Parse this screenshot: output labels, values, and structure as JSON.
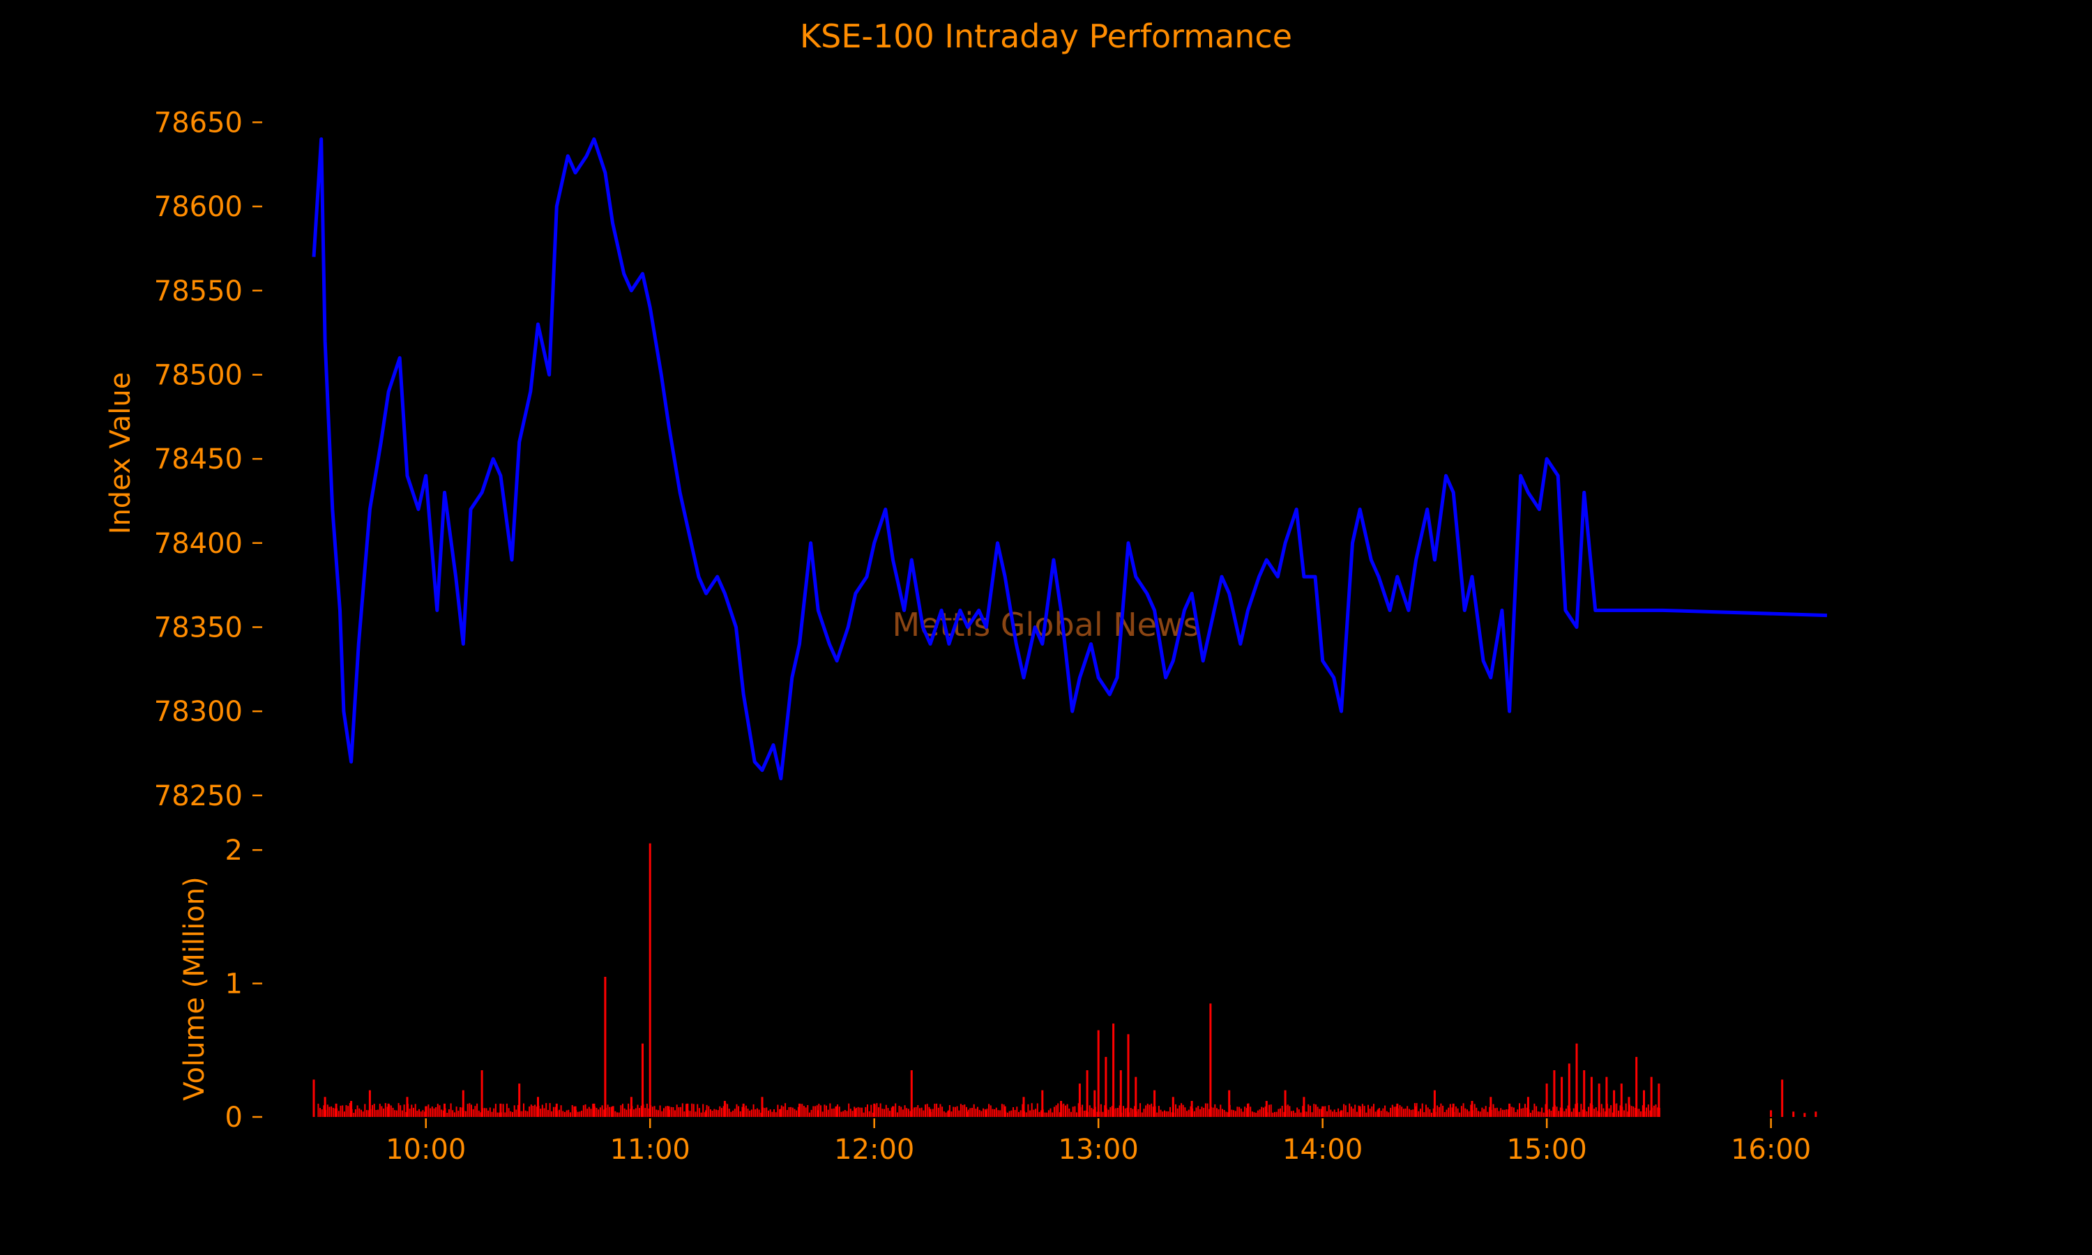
{
  "colors": {
    "background": "#000000",
    "text": "#ff8c00",
    "index_line": "#0000ff",
    "volume_bars": "#ff0000",
    "watermark": "#8b4513"
  },
  "watermark": "Mettis Global News",
  "chart_data": [
    {
      "type": "line",
      "title": "KSE-100 Intraday Performance",
      "ylabel": "Index Value",
      "ylim": [
        78240,
        78680
      ],
      "yticks": [
        78250,
        78300,
        78350,
        78400,
        78450,
        78500,
        78550,
        78600,
        78650
      ],
      "xlim": [
        "09:30",
        "16:15"
      ],
      "grid": false,
      "series": [
        {
          "x": [
            "09:30",
            "09:32",
            "09:33",
            "09:35",
            "09:37",
            "09:38",
            "09:40",
            "09:42",
            "09:45",
            "09:48",
            "09:50",
            "09:53",
            "09:55",
            "09:58",
            "10:00",
            "10:03",
            "10:05",
            "10:08",
            "10:10",
            "10:12",
            "10:15",
            "10:18",
            "10:20",
            "10:23",
            "10:25",
            "10:28",
            "10:30",
            "10:33",
            "10:35",
            "10:38",
            "10:40",
            "10:43",
            "10:45",
            "10:48",
            "10:50",
            "10:53",
            "10:55",
            "10:58",
            "11:00",
            "11:03",
            "11:05",
            "11:08",
            "11:10",
            "11:13",
            "11:15",
            "11:18",
            "11:20",
            "11:23",
            "11:25",
            "11:28",
            "11:30",
            "11:33",
            "11:35",
            "11:38",
            "11:40",
            "11:43",
            "11:45",
            "11:48",
            "11:50",
            "11:53",
            "11:55",
            "11:58",
            "12:00",
            "12:03",
            "12:05",
            "12:08",
            "12:10",
            "12:13",
            "12:15",
            "12:18",
            "12:20",
            "12:23",
            "12:25",
            "12:28",
            "12:30",
            "12:33",
            "12:35",
            "12:38",
            "12:40",
            "12:43",
            "12:45",
            "12:48",
            "12:50",
            "12:53",
            "12:55",
            "12:58",
            "13:00",
            "13:03",
            "13:05",
            "13:08",
            "13:10",
            "13:13",
            "13:15",
            "13:18",
            "13:20",
            "13:23",
            "13:25",
            "13:28",
            "13:30",
            "13:33",
            "13:35",
            "13:38",
            "13:40",
            "13:43",
            "13:45",
            "13:48",
            "13:50",
            "13:53",
            "13:55",
            "13:58",
            "14:00",
            "14:03",
            "14:05",
            "14:08",
            "14:10",
            "14:13",
            "14:15",
            "14:18",
            "14:20",
            "14:23",
            "14:25",
            "14:28",
            "14:30",
            "14:33",
            "14:35",
            "14:38",
            "14:40",
            "14:43",
            "14:45",
            "14:48",
            "14:50",
            "14:53",
            "14:55",
            "14:58",
            "15:00",
            "15:03",
            "15:05",
            "15:08",
            "15:10",
            "15:13",
            "15:15",
            "15:18",
            "15:20",
            "15:23",
            "15:25",
            "15:27",
            "15:28",
            "15:30",
            "15:31",
            "16:15"
          ],
          "y": [
            78570,
            78640,
            78520,
            78420,
            78360,
            78300,
            78270,
            78340,
            78420,
            78460,
            78490,
            78510,
            78440,
            78420,
            78440,
            78360,
            78430,
            78380,
            78340,
            78420,
            78430,
            78450,
            78440,
            78390,
            78460,
            78490,
            78530,
            78500,
            78600,
            78630,
            78620,
            78630,
            78640,
            78620,
            78590,
            78560,
            78550,
            78560,
            78540,
            78500,
            78470,
            78430,
            78410,
            78380,
            78370,
            78380,
            78370,
            78350,
            78310,
            78270,
            78265,
            78280,
            78260,
            78320,
            78340,
            78400,
            78360,
            78340,
            78330,
            78350,
            78370,
            78380,
            78400,
            78420,
            78390,
            78360,
            78390,
            78350,
            78340,
            78360,
            78340,
            78360,
            78350,
            78360,
            78350,
            78400,
            78380,
            78340,
            78320,
            78350,
            78340,
            78390,
            78360,
            78300,
            78320,
            78340,
            78320,
            78310,
            78320,
            78400,
            78380,
            78370,
            78360,
            78320,
            78330,
            78360,
            78370,
            78330,
            78350,
            78380,
            78370,
            78340,
            78360,
            78380,
            78390,
            78380,
            78400,
            78420,
            78380,
            78380,
            78330,
            78320,
            78300,
            78400,
            78420,
            78390,
            78380,
            78360,
            78380,
            78360,
            78390,
            78420,
            78390,
            78440,
            78430,
            78360,
            78380,
            78330,
            78320,
            78360,
            78300,
            78440,
            78430,
            78420,
            78450,
            78440,
            78360,
            78350,
            78430,
            78360,
            78360,
            78360,
            78360,
            78360,
            78360,
            78360,
            78360,
            78360,
            78360,
            78357
          ]
        }
      ]
    },
    {
      "type": "bar",
      "ylabel": "Volume (Million)",
      "ylim": [
        0,
        2.1
      ],
      "yticks": [
        0,
        1,
        2
      ],
      "xlim": [
        "09:30",
        "16:15"
      ],
      "xticks": [
        "10:00",
        "11:00",
        "12:00",
        "13:00",
        "14:00",
        "15:00",
        "16:00"
      ],
      "grid": false,
      "series": [
        {
          "x": [
            "09:30",
            "09:33",
            "09:36",
            "09:40",
            "09:45",
            "09:50",
            "09:55",
            "10:00",
            "10:05",
            "10:10",
            "10:15",
            "10:20",
            "10:25",
            "10:30",
            "10:35",
            "10:40",
            "10:45",
            "10:48",
            "10:50",
            "10:55",
            "10:58",
            "11:00",
            "11:05",
            "11:10",
            "11:15",
            "11:20",
            "11:25",
            "11:30",
            "11:35",
            "11:40",
            "11:45",
            "11:50",
            "11:55",
            "12:00",
            "12:05",
            "12:10",
            "12:15",
            "12:20",
            "12:25",
            "12:30",
            "12:35",
            "12:40",
            "12:45",
            "12:50",
            "12:55",
            "12:57",
            "12:59",
            "13:00",
            "13:02",
            "13:04",
            "13:06",
            "13:08",
            "13:10",
            "13:15",
            "13:20",
            "13:25",
            "13:30",
            "13:35",
            "13:40",
            "13:45",
            "13:50",
            "13:55",
            "14:00",
            "14:05",
            "14:10",
            "14:15",
            "14:20",
            "14:25",
            "14:30",
            "14:35",
            "14:40",
            "14:45",
            "14:50",
            "14:55",
            "15:00",
            "15:02",
            "15:04",
            "15:06",
            "15:08",
            "15:10",
            "15:12",
            "15:14",
            "15:16",
            "15:18",
            "15:20",
            "15:22",
            "15:24",
            "15:26",
            "15:28",
            "15:30",
            "16:00",
            "16:03",
            "16:06",
            "16:09",
            "16:12"
          ],
          "values": [
            0.28,
            0.15,
            0.1,
            0.12,
            0.2,
            0.1,
            0.15,
            0.08,
            0.1,
            0.2,
            0.35,
            0.1,
            0.25,
            0.15,
            0.1,
            0.08,
            0.1,
            1.05,
            0.08,
            0.15,
            0.55,
            2.05,
            0.08,
            0.1,
            0.05,
            0.12,
            0.1,
            0.15,
            0.06,
            0.1,
            0.05,
            0.08,
            0.06,
            0.1,
            0.08,
            0.35,
            0.06,
            0.05,
            0.04,
            0.05,
            0.08,
            0.15,
            0.2,
            0.12,
            0.25,
            0.35,
            0.2,
            0.65,
            0.45,
            0.7,
            0.35,
            0.62,
            0.3,
            0.2,
            0.15,
            0.12,
            0.85,
            0.2,
            0.1,
            0.12,
            0.2,
            0.15,
            0.08,
            0.05,
            0.08,
            0.06,
            0.1,
            0.08,
            0.2,
            0.1,
            0.12,
            0.15,
            0.1,
            0.15,
            0.25,
            0.35,
            0.3,
            0.4,
            0.55,
            0.35,
            0.3,
            0.25,
            0.3,
            0.2,
            0.25,
            0.15,
            0.45,
            0.2,
            0.3,
            0.25,
            0.05,
            0.28,
            0.04,
            0.03,
            0.04
          ]
        }
      ]
    }
  ]
}
